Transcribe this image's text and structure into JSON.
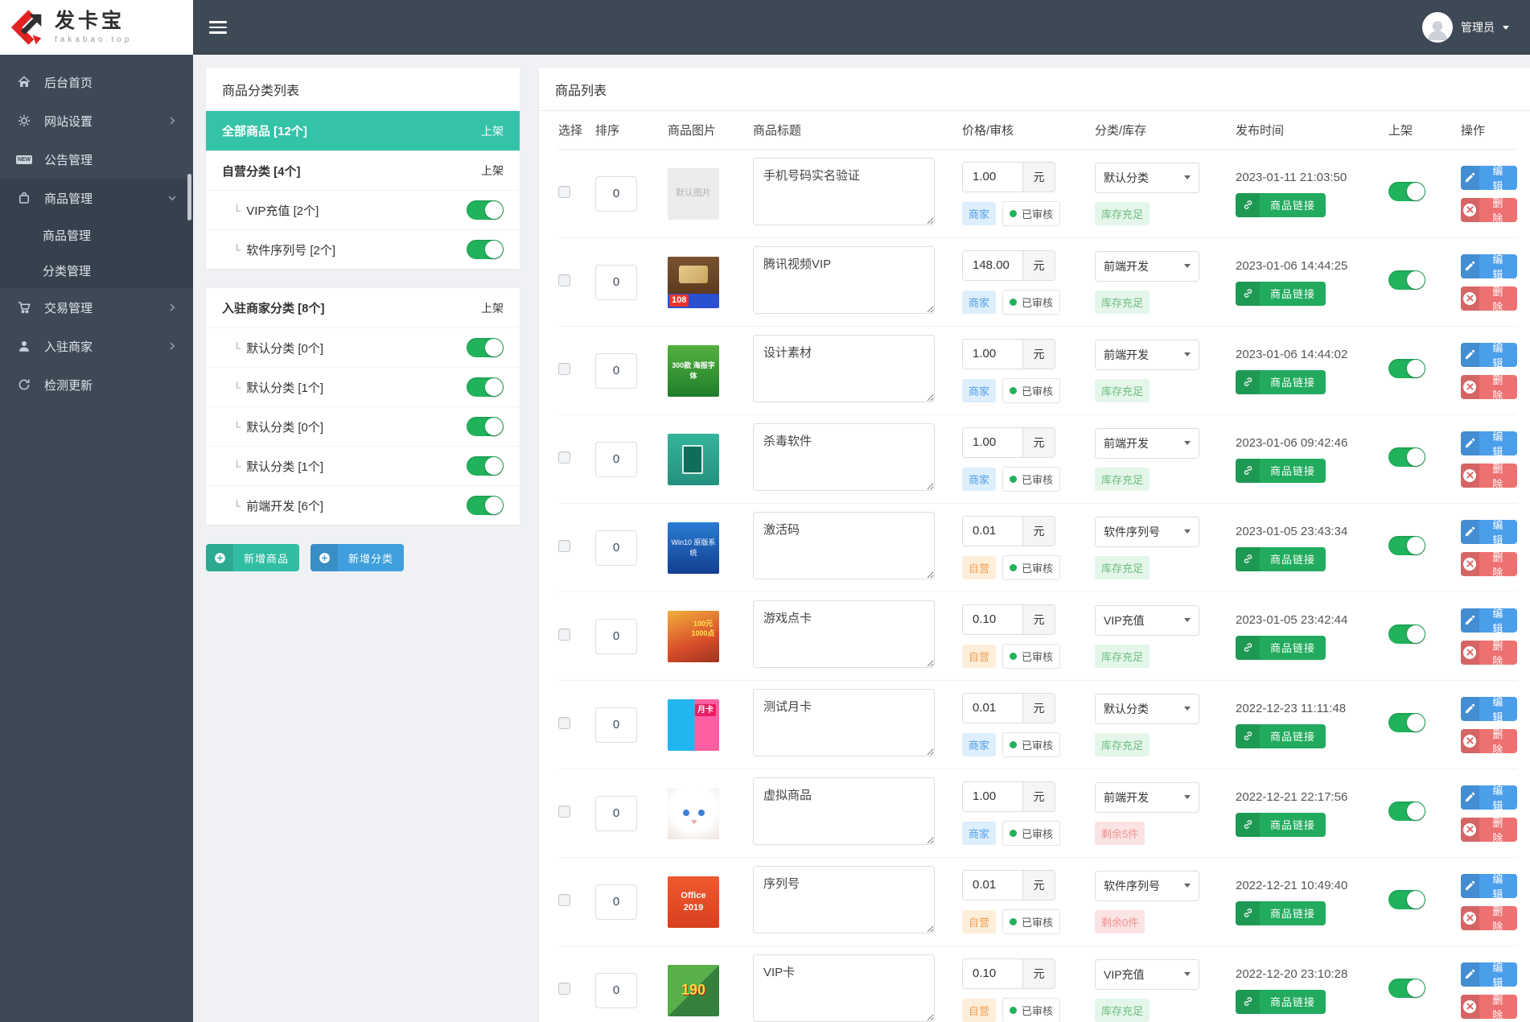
{
  "topbar": {
    "logo_title": "发卡宝",
    "logo_subtitle": "fakabao.top",
    "user_name": "管理员"
  },
  "sidebar": {
    "new_icon_text": "NEW",
    "items": [
      {
        "name": "home",
        "label": "后台首页",
        "icon": "home-icon"
      },
      {
        "name": "site-settings",
        "label": "网站设置",
        "icon": "gear-icon",
        "chevron": "right"
      },
      {
        "name": "announcements",
        "label": "公告管理",
        "icon": "announcement-new-icon"
      },
      {
        "name": "products",
        "label": "商品管理",
        "icon": "bag-icon",
        "chevron": "down",
        "active": true,
        "children": [
          {
            "name": "product-manage",
            "label": "商品管理"
          },
          {
            "name": "category-manage",
            "label": "分类管理"
          }
        ]
      },
      {
        "name": "trades",
        "label": "交易管理",
        "icon": "cart-icon",
        "chevron": "right"
      },
      {
        "name": "merchants",
        "label": "入驻商家",
        "icon": "merchant-icon",
        "chevron": "right"
      },
      {
        "name": "check-update",
        "label": "检测更新",
        "icon": "update-icon"
      }
    ]
  },
  "category_panel": {
    "title": "商品分类列表",
    "child_prefix": "└",
    "groups": [
      [
        {
          "label": "全部商品 [12个]",
          "right": "上架",
          "selected": true,
          "head": true
        },
        {
          "label": "自营分类 [4个]",
          "right": "上架",
          "head": true
        },
        {
          "label": "VIP充值 [2个]",
          "child": true,
          "toggle": true,
          "on": true
        },
        {
          "label": "软件序列号 [2个]",
          "child": true,
          "toggle": true,
          "on": true
        }
      ],
      [
        {
          "label": "入驻商家分类 [8个]",
          "right": "上架",
          "head": true
        },
        {
          "label": "默认分类 [0个]",
          "child": true,
          "toggle": true,
          "on": true
        },
        {
          "label": "默认分类 [1个]",
          "child": true,
          "toggle": true,
          "on": true
        },
        {
          "label": "默认分类 [0个]",
          "child": true,
          "toggle": true,
          "on": true
        },
        {
          "label": "默认分类 [1个]",
          "child": true,
          "toggle": true,
          "on": true
        },
        {
          "label": "前端开发 [6个]",
          "child": true,
          "toggle": true,
          "on": true
        }
      ]
    ],
    "add_product_label": "新增商品",
    "add_category_label": "新增分类"
  },
  "product_panel": {
    "title": "商品列表",
    "columns": [
      "选择",
      "排序",
      "商品图片",
      "商品标题",
      "价格/审核",
      "分类/库存",
      "发布时间",
      "上架",
      "操作"
    ],
    "unit_label": "元",
    "link_label": "商品链接",
    "edit_label": "编辑",
    "delete_label": "删除",
    "rows": [
      {
        "sort": "0",
        "image_kind": "placeholder",
        "image_label": "默认图片",
        "title": "手机号码实名验证",
        "price": "1.00",
        "seller": "商家",
        "audit": "已审核",
        "category": "默认分类",
        "stock": "库存充足",
        "stock_ok": true,
        "date": "2023-01-11 21:03:50",
        "on": true
      },
      {
        "sort": "0",
        "image_kind": "tencent",
        "image_label": "108",
        "title": "腾讯视频VIP",
        "price": "148.00",
        "seller": "商家",
        "audit": "已审核",
        "category": "前端开发",
        "stock": "库存充足",
        "stock_ok": true,
        "date": "2023-01-06 14:44:25",
        "on": true
      },
      {
        "sort": "0",
        "image_kind": "design",
        "image_label": "300款 海报字体",
        "title": "设计素材",
        "price": "1.00",
        "seller": "商家",
        "audit": "已审核",
        "category": "前端开发",
        "stock": "库存充足",
        "stock_ok": true,
        "date": "2023-01-06 14:44:02",
        "on": true
      },
      {
        "sort": "0",
        "image_kind": "antivirus",
        "image_label": "",
        "title": "杀毒软件",
        "price": "1.00",
        "seller": "商家",
        "audit": "已审核",
        "category": "前端开发",
        "stock": "库存充足",
        "stock_ok": true,
        "date": "2023-01-06 09:42:46",
        "on": true
      },
      {
        "sort": "0",
        "image_kind": "win10",
        "image_label": "Win10 原版系统",
        "title": "激活码",
        "price": "0.01",
        "seller": "自营",
        "audit": "已审核",
        "category": "软件序列号",
        "stock": "库存充足",
        "stock_ok": true,
        "date": "2023-01-05 23:43:34",
        "on": true
      },
      {
        "sort": "0",
        "image_kind": "game",
        "image_label": "100元 1000点",
        "title": "游戏点卡",
        "price": "0.10",
        "seller": "自营",
        "audit": "已审核",
        "category": "VIP充值",
        "stock": "库存充足",
        "stock_ok": true,
        "date": "2023-01-05 23:42:44",
        "on": true
      },
      {
        "sort": "0",
        "image_kind": "month",
        "image_label": "月卡",
        "title": "测试月卡",
        "price": "0.01",
        "seller": "商家",
        "audit": "已审核",
        "category": "默认分类",
        "stock": "库存充足",
        "stock_ok": true,
        "date": "2022-12-23 11:11:48",
        "on": true
      },
      {
        "sort": "0",
        "image_kind": "cat",
        "image_label": "",
        "title": "虚拟商品",
        "price": "1.00",
        "seller": "商家",
        "audit": "已审核",
        "category": "前端开发",
        "stock": "剩余5件",
        "stock_ok": false,
        "date": "2022-12-21 22:17:56",
        "on": true
      },
      {
        "sort": "0",
        "image_kind": "office",
        "image_label": "Office 2019",
        "title": "序列号",
        "price": "0.01",
        "seller": "自营",
        "audit": "已审核",
        "category": "软件序列号",
        "stock": "剩余0件",
        "stock_ok": false,
        "date": "2022-12-21 10:49:40",
        "on": true
      },
      {
        "sort": "0",
        "image_kind": "vip",
        "image_label": "190",
        "title": "VIP卡",
        "price": "0.10",
        "seller": "自营",
        "audit": "已审核",
        "category": "VIP充值",
        "stock": "库存充足",
        "stock_ok": true,
        "date": "2022-12-20 23:10:28",
        "on": true
      }
    ]
  },
  "colors": {
    "topbar_bg": "#3e4956",
    "accent_teal": "#35c3a8",
    "add_category_blue": "#3f9fdc",
    "edit_blue": "#4b9eea",
    "delete_red": "#ee7171",
    "link_green": "#22ab5e",
    "toggle_green": "#21b35c",
    "merchant_badge_blue": "#519fe8",
    "self_badge_orange": "#efa055",
    "stock_ok_green": "#6cbd7e",
    "stock_low_red": "#ef9292"
  }
}
